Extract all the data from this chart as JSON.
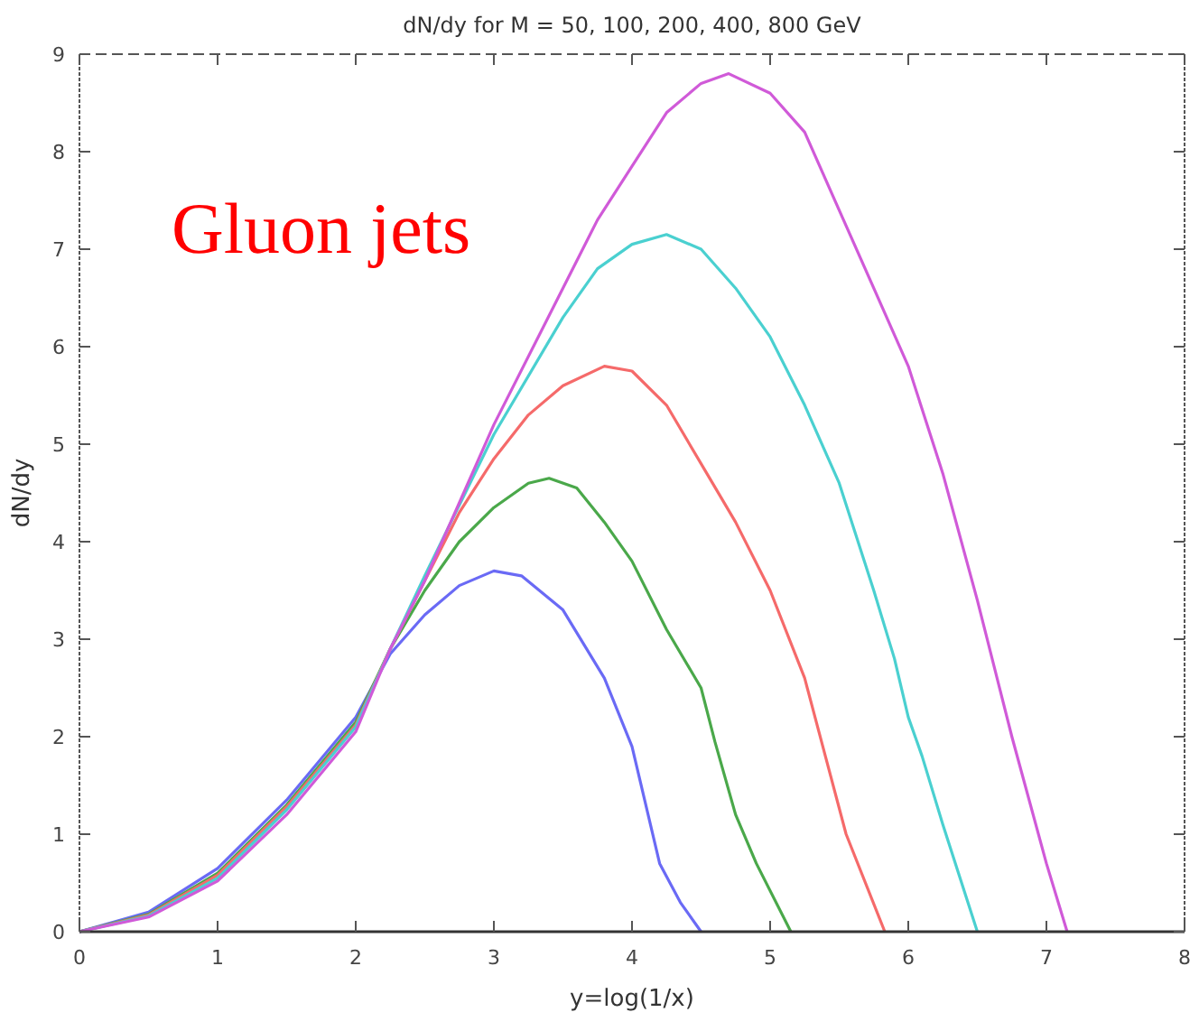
{
  "chart_data": {
    "type": "line",
    "title": "dN/dy for M = 50, 100, 200, 400, 800 GeV",
    "xlabel": "y=log(1/x)",
    "ylabel": "dN/dy",
    "annotations": [
      "Gluon jets"
    ],
    "xlim": [
      0,
      8
    ],
    "ylim": [
      0,
      9
    ],
    "xticks": [
      0,
      1,
      2,
      3,
      4,
      5,
      6,
      7,
      8
    ],
    "yticks": [
      0,
      1,
      2,
      3,
      4,
      5,
      6,
      7,
      8,
      9
    ],
    "marker": "none",
    "line_style": "solid",
    "series": [
      {
        "color": "#6a6af5",
        "x": [
          0,
          0.5,
          1,
          1.5,
          2,
          2.25,
          2.5,
          2.75,
          3,
          3.2,
          3.5,
          3.8,
          4,
          4.1,
          4.2,
          4.35,
          4.5
        ],
        "values": [
          0,
          0.2,
          0.65,
          1.35,
          2.2,
          2.85,
          3.25,
          3.55,
          3.7,
          3.65,
          3.3,
          2.6,
          1.9,
          1.3,
          0.7,
          0.3,
          0
        ]
      },
      {
        "color": "#4aa84a",
        "x": [
          0,
          0.5,
          1,
          1.5,
          2,
          2.25,
          2.5,
          2.75,
          3,
          3.25,
          3.4,
          3.6,
          3.8,
          4,
          4.25,
          4.5,
          4.6,
          4.75,
          4.9,
          5.15
        ],
        "values": [
          0,
          0.18,
          0.6,
          1.3,
          2.15,
          2.9,
          3.5,
          4.0,
          4.35,
          4.6,
          4.65,
          4.55,
          4.2,
          3.8,
          3.1,
          2.5,
          1.95,
          1.2,
          0.7,
          0
        ]
      },
      {
        "color": "#f56a6a",
        "x": [
          0,
          0.5,
          1,
          1.5,
          2,
          2.25,
          2.5,
          2.75,
          3,
          3.25,
          3.5,
          3.8,
          4,
          4.25,
          4.5,
          4.75,
          5,
          5.25,
          5.4,
          5.55,
          5.83
        ],
        "values": [
          0,
          0.17,
          0.58,
          1.28,
          2.12,
          2.9,
          3.6,
          4.3,
          4.85,
          5.3,
          5.6,
          5.8,
          5.75,
          5.4,
          4.8,
          4.2,
          3.5,
          2.6,
          1.8,
          1.0,
          0
        ]
      },
      {
        "color": "#4ad0d0",
        "x": [
          0,
          0.5,
          1,
          1.5,
          2,
          2.25,
          2.5,
          3,
          3.5,
          3.75,
          4,
          4.25,
          4.5,
          4.75,
          5,
          5.25,
          5.5,
          5.75,
          5.9,
          6,
          6.1,
          6.25,
          6.5
        ],
        "values": [
          0,
          0.16,
          0.55,
          1.25,
          2.1,
          2.9,
          3.65,
          5.1,
          6.3,
          6.8,
          7.05,
          7.15,
          7.0,
          6.6,
          6.1,
          5.4,
          4.6,
          3.5,
          2.8,
          2.2,
          1.8,
          1.1,
          0
        ]
      },
      {
        "color": "#d05ad8",
        "x": [
          0,
          0.5,
          1,
          1.5,
          2,
          2.25,
          2.5,
          3,
          3.5,
          3.75,
          4,
          4.25,
          4.5,
          4.7,
          5,
          5.25,
          5.5,
          5.75,
          6,
          6.25,
          6.5,
          6.75,
          7,
          7.15
        ],
        "values": [
          0,
          0.15,
          0.52,
          1.2,
          2.05,
          2.9,
          3.6,
          5.2,
          6.6,
          7.3,
          7.85,
          8.4,
          8.7,
          8.8,
          8.6,
          8.2,
          7.4,
          6.6,
          5.8,
          4.7,
          3.4,
          2.0,
          0.7,
          0
        ]
      }
    ]
  }
}
